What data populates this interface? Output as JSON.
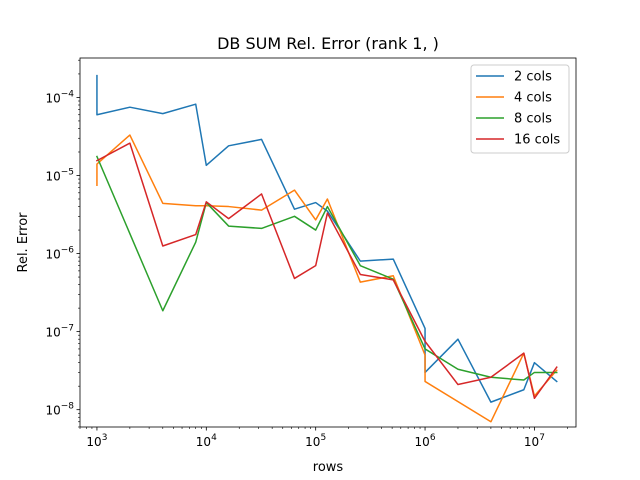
{
  "chart_data": {
    "type": "line",
    "title": "DB SUM Rel. Error (rank 1, )",
    "xlabel": "rows",
    "ylabel": "Rel. Error",
    "xscale": "log",
    "yscale": "log",
    "xlim": [
      700,
      24000000
    ],
    "ylim": [
      6e-09,
      0.00032
    ],
    "grid": false,
    "legend_position": "top-right",
    "x_ticks": [
      {
        "base": "10",
        "exp": "3",
        "value": 1000
      },
      {
        "base": "10",
        "exp": "4",
        "value": 10000
      },
      {
        "base": "10",
        "exp": "5",
        "value": 100000
      },
      {
        "base": "10",
        "exp": "6",
        "value": 1000000
      },
      {
        "base": "10",
        "exp": "7",
        "value": 10000000
      }
    ],
    "y_ticks": [
      {
        "base": "10",
        "exp": "−8",
        "value": 1e-08
      },
      {
        "base": "10",
        "exp": "−7",
        "value": 1e-07
      },
      {
        "base": "10",
        "exp": "−6",
        "value": 1e-06
      },
      {
        "base": "10",
        "exp": "−5",
        "value": 1e-05
      },
      {
        "base": "10",
        "exp": "−4",
        "value": 0.0001
      }
    ],
    "series": [
      {
        "name": "2 cols",
        "color": "#1f77b4",
        "points": [
          [
            1000,
            0.00019
          ],
          [
            1000,
            6e-05
          ],
          [
            2000,
            7.5e-05
          ],
          [
            4000,
            6.2e-05
          ],
          [
            8000,
            8.2e-05
          ],
          [
            10000,
            1.35e-05
          ],
          [
            16000,
            2.4e-05
          ],
          [
            32000,
            2.9e-05
          ],
          [
            64000,
            3.7e-06
          ],
          [
            100000,
            4.5e-06
          ],
          [
            128000,
            3.5e-06
          ],
          [
            256000,
            8e-07
          ],
          [
            512000,
            8.5e-07
          ],
          [
            1000000,
            1.1e-07
          ],
          [
            1000000,
            3e-08
          ],
          [
            2000000,
            8e-08
          ],
          [
            4000000,
            1.25e-08
          ],
          [
            8000000,
            1.8e-08
          ],
          [
            10000000,
            4e-08
          ],
          [
            16000000,
            2.3e-08
          ]
        ]
      },
      {
        "name": "4 cols",
        "color": "#ff7f0e",
        "points": [
          [
            1000,
            7.5e-06
          ],
          [
            1000,
            1.4e-05
          ],
          [
            2000,
            3.3e-05
          ],
          [
            4000,
            4.4e-06
          ],
          [
            8000,
            4.1e-06
          ],
          [
            10000,
            4.1e-06
          ],
          [
            16000,
            4e-06
          ],
          [
            32000,
            3.6e-06
          ],
          [
            64000,
            6.5e-06
          ],
          [
            100000,
            2.7e-06
          ],
          [
            128000,
            5e-06
          ],
          [
            256000,
            4.3e-07
          ],
          [
            512000,
            5.2e-07
          ],
          [
            1000000,
            5e-08
          ],
          [
            1000000,
            2.3e-08
          ],
          [
            4000000,
            7e-09
          ],
          [
            8000000,
            5.3e-08
          ],
          [
            10000000,
            1.5e-08
          ],
          [
            16000000,
            3.2e-08
          ]
        ]
      },
      {
        "name": "8 cols",
        "color": "#2ca02c",
        "points": [
          [
            1000,
            1.75e-05
          ],
          [
            4000,
            1.85e-07
          ],
          [
            8000,
            1.4e-06
          ],
          [
            10000,
            4.5e-06
          ],
          [
            16000,
            2.25e-06
          ],
          [
            32000,
            2.1e-06
          ],
          [
            64000,
            3e-06
          ],
          [
            100000,
            2e-06
          ],
          [
            128000,
            4e-06
          ],
          [
            256000,
            7e-07
          ],
          [
            512000,
            4.7e-07
          ],
          [
            1000000,
            6e-08
          ],
          [
            2000000,
            3.3e-08
          ],
          [
            4000000,
            2.6e-08
          ],
          [
            8000000,
            2.4e-08
          ],
          [
            10000000,
            3e-08
          ],
          [
            16000000,
            3e-08
          ]
        ]
      },
      {
        "name": "16 cols",
        "color": "#d62728",
        "points": [
          [
            1000,
            1.55e-05
          ],
          [
            2000,
            2.6e-05
          ],
          [
            4000,
            1.25e-06
          ],
          [
            8000,
            1.75e-06
          ],
          [
            10000,
            4.6e-06
          ],
          [
            16000,
            2.8e-06
          ],
          [
            32000,
            5.8e-06
          ],
          [
            64000,
            4.8e-07
          ],
          [
            100000,
            7e-07
          ],
          [
            128000,
            3.3e-06
          ],
          [
            256000,
            5.4e-07
          ],
          [
            512000,
            4.6e-07
          ],
          [
            1000000,
            7.5e-08
          ],
          [
            2000000,
            2.1e-08
          ],
          [
            4000000,
            2.6e-08
          ],
          [
            8000000,
            5.3e-08
          ],
          [
            10000000,
            1.4e-08
          ],
          [
            16000000,
            3.5e-08
          ]
        ]
      }
    ]
  }
}
